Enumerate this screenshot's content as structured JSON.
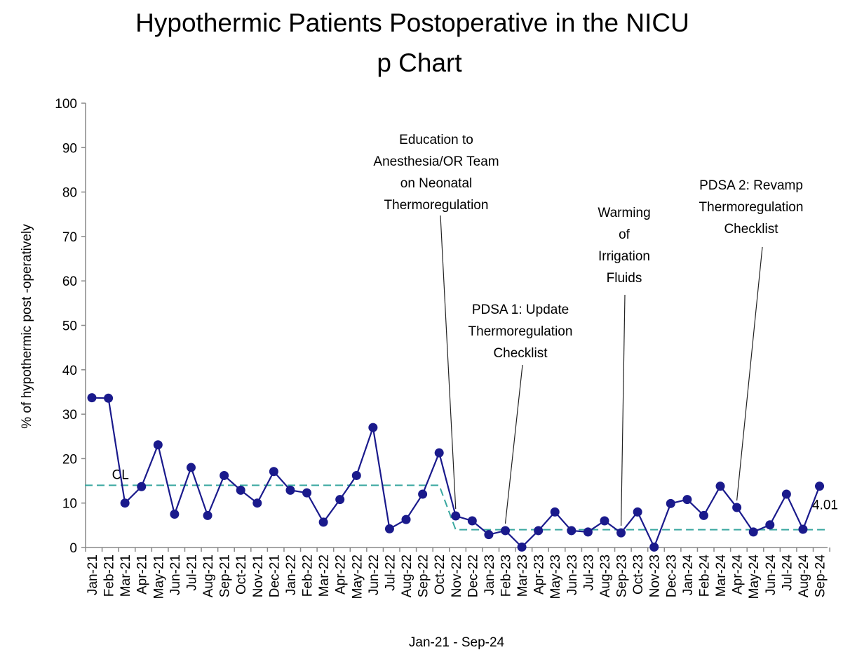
{
  "chart_data": {
    "type": "line",
    "title": "Hypothermic Patients Postoperative in the NICU",
    "subtitle": "p Chart",
    "xlabel": "Jan-21 - Sep-24",
    "ylabel": "% of hypothermic post  -operatively",
    "ylim": [
      0,
      100
    ],
    "yticks": [
      "0",
      "10",
      "20",
      "30",
      "40",
      "50",
      "60",
      "70",
      "80",
      "90",
      "100"
    ],
    "grid": false,
    "categories": [
      "Jan-21",
      "Feb-21",
      "Mar-21",
      "Apr-21",
      "May-21",
      "Jun-21",
      "Jul-21",
      "Aug-21",
      "Sep-21",
      "Oct-21",
      "Nov-21",
      "Dec-21",
      "Jan-22",
      "Feb-22",
      "Mar-22",
      "Apr-22",
      "May-22",
      "Jun-22",
      "Jul-22",
      "Aug-22",
      "Sep-22",
      "Oct-22",
      "Nov-22",
      "Dec-22",
      "Jan-23",
      "Feb-23",
      "Mar-23",
      "Apr-23",
      "May-23",
      "Jun-23",
      "Jul-23",
      "Aug-23",
      "Sep-23",
      "Oct-23",
      "Nov-23",
      "Dec-23",
      "Jan-24",
      "Feb-24",
      "Mar-24",
      "Apr-24",
      "May-24",
      "Jun-24",
      "Jul-24",
      "Aug-24",
      "Sep-24"
    ],
    "series": [
      {
        "color": "#1a1a8c",
        "values": [
          33.7,
          33.6,
          10,
          13.7,
          23.1,
          7.5,
          18,
          7.2,
          16.2,
          12.9,
          10,
          17.1,
          12.9,
          12.3,
          5.7,
          10.8,
          16.2,
          27,
          4.2,
          6.3,
          12,
          21.3,
          7.1,
          6,
          2.9,
          3.8,
          0.1,
          3.8,
          8,
          3.8,
          3.5,
          6,
          3.3,
          8,
          0.1,
          9.9,
          10.8,
          7.2,
          13.8,
          9,
          3.5,
          5.1,
          12,
          4.1,
          13.8
        ]
      }
    ],
    "center_line": {
      "label": "CL",
      "color": "#3aa8a0",
      "segments": [
        {
          "from": "Jan-21",
          "to": "Oct-22",
          "value": 14
        },
        {
          "from": "Nov-22",
          "to": "Sep-24",
          "value": 4.01
        }
      ],
      "end_label": "4.01"
    },
    "annotations": [
      {
        "lines": [
          "Education to",
          "Anesthesia/OR Team",
          "on Neonatal",
          "Thermoregulation"
        ],
        "target": "Nov-22",
        "target_value": 7.1
      },
      {
        "lines": [
          "PDSA 1: Update",
          "Thermoregulation",
          "Checklist"
        ],
        "target": "Feb-23",
        "target_value": 3.8
      },
      {
        "lines": [
          "Warming",
          "of",
          "Irrigation",
          "Fluids"
        ],
        "target": "Sep-23",
        "target_value": 3.3
      },
      {
        "lines": [
          "PDSA 2: Revamp",
          "Thermoregulation",
          "Checklist"
        ],
        "target": "Apr-24",
        "target_value": 9
      }
    ]
  }
}
